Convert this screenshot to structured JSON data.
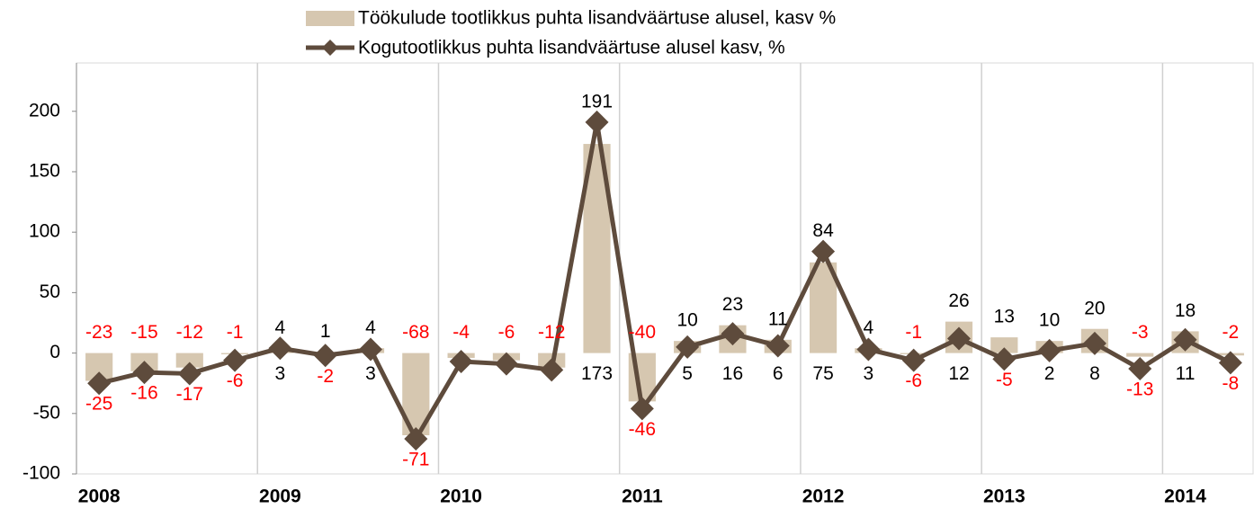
{
  "chart_data": {
    "type": "bar-line",
    "categories": [
      "2008",
      null,
      null,
      null,
      "2009",
      null,
      null,
      null,
      "2010",
      null,
      null,
      null,
      "2011",
      null,
      null,
      null,
      "2012",
      null,
      null,
      null,
      "2013",
      null,
      null,
      null,
      "2014",
      null
    ],
    "series": [
      {
        "name": "Töökulude tootlikkus puhta lisandväärtuse alusel, kasv %",
        "type": "bar",
        "color": "#d6c7b0",
        "values": [
          -23,
          -15,
          -12,
          -1,
          3,
          1,
          4,
          -68,
          -4,
          -6,
          -12,
          173,
          -40,
          10,
          23,
          11,
          75,
          4,
          -1,
          26,
          13,
          10,
          20,
          -3,
          18,
          -2
        ],
        "value_labels": [
          "-23",
          "-15",
          "-12",
          "-1",
          "3",
          "1",
          "4",
          "-68",
          "-4",
          "-6",
          "-12",
          "173",
          "-40",
          "10",
          "23",
          "11",
          "75",
          "4",
          "-1",
          "26",
          "13",
          "10",
          "20",
          "-3",
          "18",
          "-2"
        ]
      },
      {
        "name": "Kogutootlikkus puhta lisandväärtuse alusel kasv, %",
        "type": "line",
        "color": "#5e4b3c",
        "values": [
          -25,
          -16,
          -17,
          -6,
          4,
          -2,
          3,
          -71,
          -7,
          -9,
          -14,
          191,
          -46,
          5,
          16,
          6,
          84,
          3,
          -6,
          12,
          -5,
          2,
          8,
          -13,
          11,
          -8
        ],
        "value_labels": [
          "-25",
          "-16",
          "-17",
          "-6",
          "4",
          "-2",
          "3",
          "-71",
          null,
          null,
          null,
          "191",
          "-46",
          "5",
          "16",
          "6",
          "84",
          "3",
          "-6",
          "12",
          "-5",
          "2",
          "8",
          "-13",
          "11",
          "-8"
        ]
      }
    ],
    "ylim": [
      -100,
      240
    ],
    "yticks": [
      -100,
      -50,
      0,
      50,
      100,
      150,
      200
    ],
    "label_colors": {
      "positive": "#000000",
      "negative": "#ff0000"
    }
  }
}
